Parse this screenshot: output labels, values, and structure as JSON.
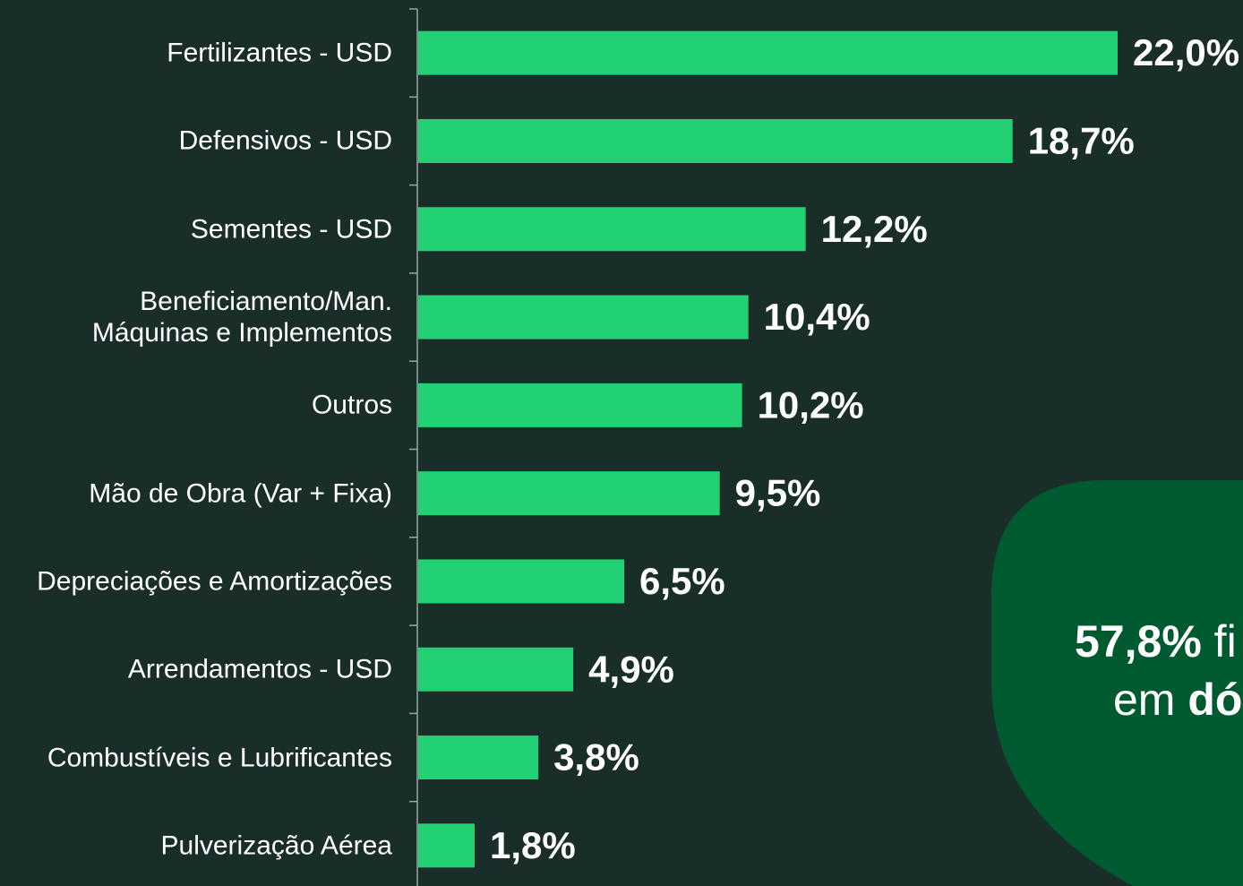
{
  "chart_data": {
    "type": "bar",
    "orientation": "horizontal",
    "color": "#22d173",
    "categories": [
      "Fertilizantes - USD",
      "Defensivos - USD",
      "Sementes - USD",
      "Beneficiamento/Man.\nMáquinas e Implementos",
      "Outros",
      "Mão de Obra (Var + Fixa)",
      "Depreciações e Amortizações",
      "Arrendamentos - USD",
      "Combustíveis e Lubrificantes",
      "Pulverização Aérea"
    ],
    "values": [
      22.0,
      18.7,
      12.2,
      10.4,
      10.2,
      9.5,
      6.5,
      4.9,
      3.8,
      1.8
    ],
    "value_labels": [
      "22,0%",
      "18,7%",
      "12,2%",
      "10,4%",
      "10,2%",
      "9,5%",
      "6,5%",
      "4,9%",
      "3,8%",
      "1,8%"
    ],
    "annotation": {
      "line1": {
        "bold": "57,8%",
        "regular": " fi"
      },
      "line2": {
        "regular": "em ",
        "bold": "dó"
      }
    }
  }
}
